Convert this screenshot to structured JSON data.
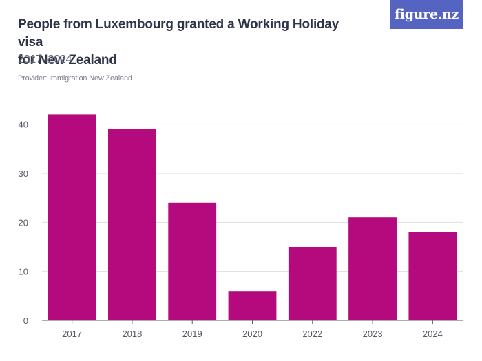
{
  "header": {
    "title_line1": "People from Luxembourg granted a Working Holiday visa",
    "title_line2": "for New Zealand",
    "subtitle": "2017–2024",
    "provider": "Provider: Immigration New Zealand"
  },
  "logo": {
    "text": "figure.nz",
    "background": "#5564c3"
  },
  "chart_data": {
    "type": "bar",
    "categories": [
      "2017",
      "2018",
      "2019",
      "2020",
      "2022",
      "2023",
      "2024"
    ],
    "values": [
      42,
      39,
      24,
      6,
      15,
      21,
      18
    ],
    "ylim": [
      0,
      45
    ],
    "yticks": [
      0,
      10,
      20,
      30,
      40
    ],
    "grid": true,
    "bar_color": "#b5097e",
    "gridline_color": "#dedede",
    "axis_color": "#555a66"
  }
}
